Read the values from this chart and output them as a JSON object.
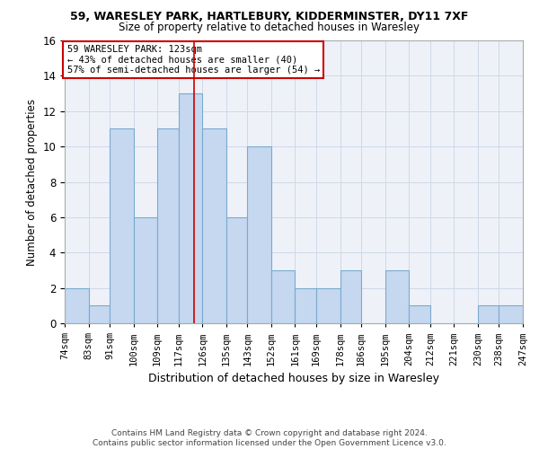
{
  "title1": "59, WARESLEY PARK, HARTLEBURY, KIDDERMINSTER, DY11 7XF",
  "title2": "Size of property relative to detached houses in Waresley",
  "xlabel": "Distribution of detached houses by size in Waresley",
  "ylabel": "Number of detached properties",
  "footer1": "Contains HM Land Registry data © Crown copyright and database right 2024.",
  "footer2": "Contains public sector information licensed under the Open Government Licence v3.0.",
  "annotation_line1": "59 WARESLEY PARK: 123sqm",
  "annotation_line2": "← 43% of detached houses are smaller (40)",
  "annotation_line3": "57% of semi-detached houses are larger (54) →",
  "property_size": 123,
  "bar_color": "#c5d8f0",
  "bar_edge_color": "#7aaad0",
  "vline_color": "#cc0000",
  "bins": [
    74,
    83,
    91,
    100,
    109,
    117,
    126,
    135,
    143,
    152,
    161,
    169,
    178,
    186,
    195,
    204,
    212,
    221,
    230,
    238,
    247
  ],
  "counts": [
    2,
    1,
    11,
    6,
    11,
    13,
    11,
    6,
    10,
    3,
    2,
    2,
    3,
    0,
    3,
    1,
    0,
    0,
    1,
    1
  ],
  "tick_labels": [
    "74sqm",
    "83sqm",
    "91sqm",
    "100sqm",
    "109sqm",
    "117sqm",
    "126sqm",
    "135sqm",
    "143sqm",
    "152sqm",
    "161sqm",
    "169sqm",
    "178sqm",
    "186sqm",
    "195sqm",
    "204sqm",
    "212sqm",
    "221sqm",
    "230sqm",
    "238sqm",
    "247sqm"
  ],
  "ylim": [
    0,
    16
  ],
  "yticks": [
    0,
    2,
    4,
    6,
    8,
    10,
    12,
    14,
    16
  ],
  "grid_color": "#d0d8e8",
  "bg_color": "#eef2f8",
  "annotation_box_color": "#ffffff",
  "annotation_box_edge": "#cc0000"
}
